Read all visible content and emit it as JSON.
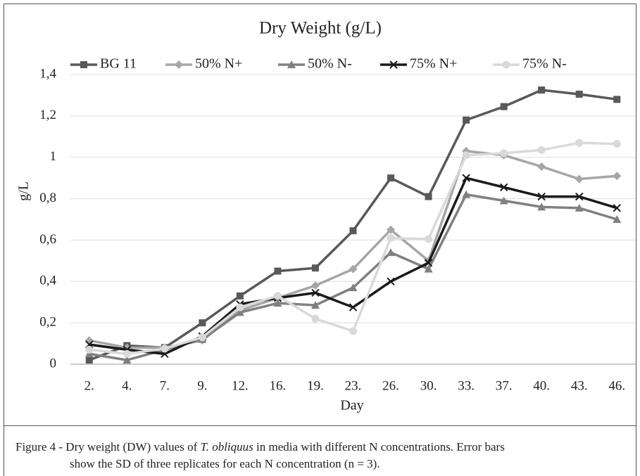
{
  "chart_data": {
    "type": "line",
    "title": "Dry Weight (g/L)",
    "xlabel": "Day",
    "ylabel": "g/L",
    "categories": [
      "2.",
      "4.",
      "7.",
      "9.",
      "12.",
      "16.",
      "19.",
      "23.",
      "26.",
      "30.",
      "33.",
      "37.",
      "40.",
      "43.",
      "46."
    ],
    "series": [
      {
        "name": "BG 11",
        "color": "#595959",
        "marker": "square",
        "values": [
          0.02,
          0.09,
          0.08,
          0.2,
          0.33,
          0.45,
          0.465,
          0.645,
          0.9,
          0.81,
          1.18,
          1.245,
          1.325,
          1.305,
          1.28
        ]
      },
      {
        "name": "50% N+",
        "color": "#a6a6a6",
        "marker": "diamond",
        "values": [
          0.115,
          0.08,
          0.08,
          0.115,
          0.26,
          0.32,
          0.38,
          0.46,
          0.65,
          0.5,
          1.03,
          1.01,
          0.955,
          0.895,
          0.91
        ]
      },
      {
        "name": "50% N-",
        "color": "#808080",
        "marker": "triangle",
        "values": [
          0.05,
          0.02,
          0.07,
          0.12,
          0.25,
          0.295,
          0.285,
          0.37,
          0.54,
          0.46,
          0.82,
          0.79,
          0.76,
          0.755,
          0.7
        ]
      },
      {
        "name": "75% N+",
        "color": "#1a1a1a",
        "marker": "x",
        "values": [
          0.095,
          0.07,
          0.05,
          0.135,
          0.29,
          0.32,
          0.345,
          0.275,
          0.4,
          0.49,
          0.9,
          0.855,
          0.81,
          0.81,
          0.755
        ]
      },
      {
        "name": "75% N-",
        "color": "#d9d9d9",
        "marker": "circle",
        "values": [
          0.07,
          0.05,
          0.075,
          0.13,
          0.275,
          0.33,
          0.22,
          0.16,
          0.61,
          0.605,
          1.01,
          1.02,
          1.035,
          1.07,
          1.065
        ]
      }
    ],
    "ylim": [
      0,
      1.4
    ],
    "yticks": [
      0,
      {
        "value": 0.2,
        "label": "0,2"
      },
      {
        "value": 0.4,
        "label": "0,4"
      },
      {
        "value": 0.6,
        "label": "0,6"
      },
      {
        "value": 0.8,
        "label": "0,8"
      },
      1,
      {
        "value": 1.2,
        "label": "1,2"
      },
      {
        "value": 1.4,
        "label": "1,4"
      }
    ],
    "grid": true,
    "legend": "top"
  },
  "caption": {
    "prefix": "Figure 4 - Dry weight (DW) values of ",
    "species": "T. obliquus",
    "rest": " in media with different N concentrations. Error bars",
    "line2": "show the SD of three replicates for each N concentration (n = 3)."
  }
}
